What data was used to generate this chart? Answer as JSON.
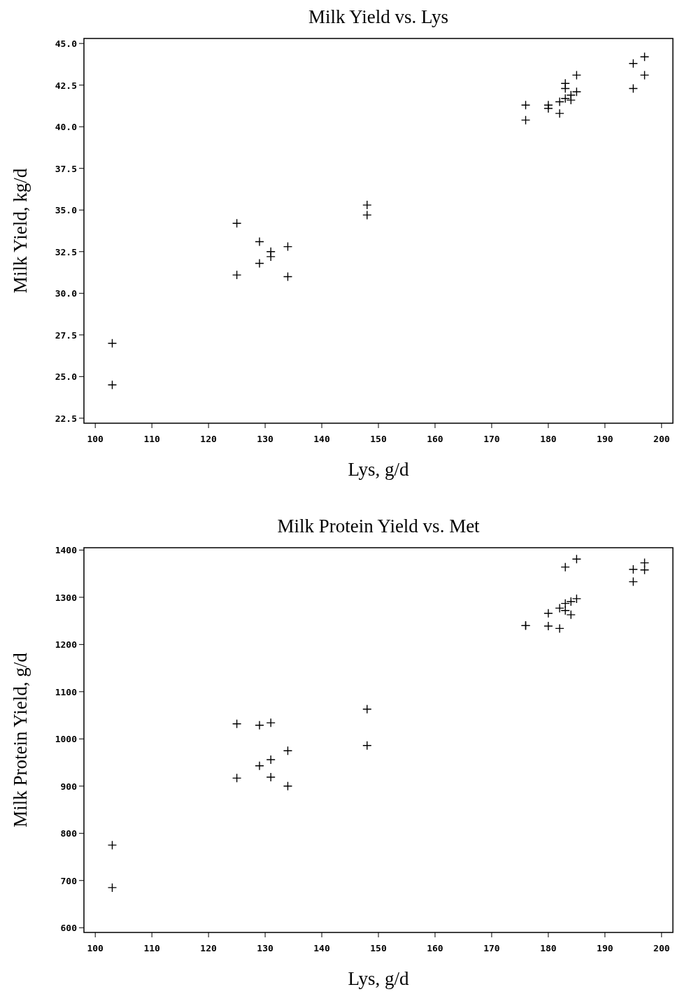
{
  "chart_data": [
    {
      "type": "scatter",
      "title": "Milk Yield vs. Lys",
      "xlabel": "Lys, g/d",
      "ylabel": "Milk Yield, kg/d",
      "marker": "cross",
      "color": "#000000",
      "x": [
        103,
        103,
        125,
        125,
        129,
        129,
        131,
        131,
        134,
        134,
        148,
        148,
        176,
        176,
        180,
        180,
        182,
        182,
        183,
        183,
        183,
        184,
        184,
        185,
        185,
        195,
        195,
        197,
        197
      ],
      "values": [
        27.0,
        24.5,
        34.2,
        31.1,
        33.1,
        31.8,
        32.5,
        32.2,
        32.8,
        31.0,
        35.3,
        34.7,
        41.3,
        40.4,
        41.3,
        41.1,
        40.8,
        41.5,
        42.6,
        42.3,
        41.7,
        41.9,
        41.6,
        43.1,
        42.1,
        43.8,
        42.3,
        44.2,
        43.1
      ],
      "xlim": [
        98,
        202
      ],
      "xticks": [
        100,
        110,
        120,
        130,
        140,
        150,
        160,
        170,
        180,
        190,
        200
      ],
      "ylim": [
        22.2,
        45.3
      ],
      "yticks": [
        {
          "value": 22.5,
          "label": "22.5"
        },
        {
          "value": 25,
          "label": "25.0"
        },
        {
          "value": 27.5,
          "label": "27.5"
        },
        {
          "value": 30,
          "label": "30.0"
        },
        {
          "value": 32.5,
          "label": "32.5"
        },
        {
          "value": 35,
          "label": "35.0"
        },
        {
          "value": 37.5,
          "label": "37.5"
        },
        {
          "value": 40,
          "label": "40.0"
        },
        {
          "value": 42.5,
          "label": "42.5"
        },
        {
          "value": 45,
          "label": "45.0"
        }
      ]
    },
    {
      "type": "scatter",
      "title": "Milk Protein Yield vs. Met",
      "xlabel": "Lys, g/d",
      "ylabel": "Milk Protein Yield, g/d",
      "marker": "cross",
      "color": "#000000",
      "x": [
        103,
        103,
        125,
        125,
        129,
        129,
        131,
        131,
        131,
        134,
        134,
        148,
        148,
        176,
        176,
        180,
        180,
        182,
        182,
        183,
        183,
        183,
        184,
        184,
        185,
        185,
        195,
        195,
        197,
        197
      ],
      "values": [
        775,
        685,
        1032,
        917,
        1029,
        943,
        1034,
        956,
        919,
        975,
        900,
        1063,
        986,
        1240,
        1240,
        1266,
        1239,
        1277,
        1234,
        1364,
        1287,
        1272,
        1291,
        1263,
        1381,
        1297,
        1359,
        1333,
        1373,
        1358
      ],
      "xlim": [
        98,
        202
      ],
      "xticks": [
        100,
        110,
        120,
        130,
        140,
        150,
        160,
        170,
        180,
        190,
        200
      ],
      "ylim": [
        590,
        1405
      ],
      "yticks": [
        600,
        700,
        800,
        900,
        1000,
        1100,
        1200,
        1300,
        1400
      ]
    }
  ]
}
